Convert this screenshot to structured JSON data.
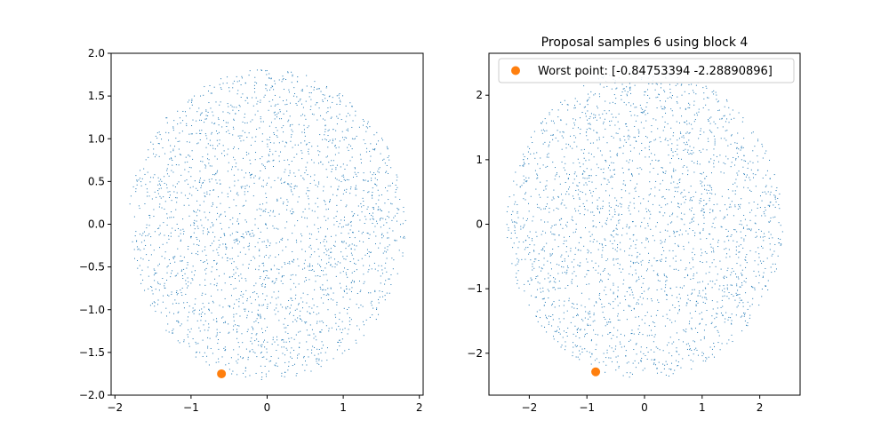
{
  "chart_data": [
    {
      "type": "scatter",
      "title": "",
      "xlabel": "",
      "ylabel": "",
      "xlim": [
        -2.05,
        2.05
      ],
      "ylim": [
        -2.0,
        2.0
      ],
      "xticks": [
        -2,
        -1,
        0,
        1,
        2
      ],
      "xtick_labels": [
        "−2",
        "−1",
        "0",
        "1",
        "2"
      ],
      "yticks": [
        -2.0,
        -1.5,
        -1.0,
        -0.5,
        0.0,
        0.5,
        1.0,
        1.5,
        2.0
      ],
      "ytick_labels": [
        "−2.0",
        "−1.5",
        "−1.0",
        "−0.5",
        "0.0",
        "0.5",
        "1.0",
        "1.5",
        "2.0"
      ],
      "grid": false,
      "series": [
        {
          "kind": "uniform-disk-samples",
          "color": "#1f77b4",
          "center": [
            0,
            0
          ],
          "radius": 1.82,
          "count": 2400
        },
        {
          "kind": "highlight-point",
          "color": "#ff7f0e",
          "x": -0.6,
          "y": -1.75
        }
      ]
    },
    {
      "type": "scatter",
      "title": "Proposal samples 6 using block 4",
      "xlabel": "",
      "ylabel": "",
      "xlim": [
        -2.7,
        2.7
      ],
      "ylim": [
        -2.65,
        2.65
      ],
      "xticks": [
        -2,
        -1,
        0,
        1,
        2
      ],
      "xtick_labels": [
        "−2",
        "−1",
        "0",
        "1",
        "2"
      ],
      "yticks": [
        -2,
        -1,
        0,
        1,
        2
      ],
      "ytick_labels": [
        "−2",
        "−1",
        "0",
        "1",
        "2"
      ],
      "grid": false,
      "legend": {
        "placement": "upper-left",
        "entries": [
          {
            "label": "Worst point: [-0.84753394 -2.28890896]",
            "color": "#ff7f0e"
          }
        ]
      },
      "series": [
        {
          "kind": "uniform-disk-samples",
          "color": "#1f77b4",
          "center": [
            0,
            0
          ],
          "radius": 2.4,
          "count": 2400
        },
        {
          "kind": "highlight-point",
          "color": "#ff7f0e",
          "x": -0.84753394,
          "y": -2.28890896
        }
      ]
    }
  ]
}
